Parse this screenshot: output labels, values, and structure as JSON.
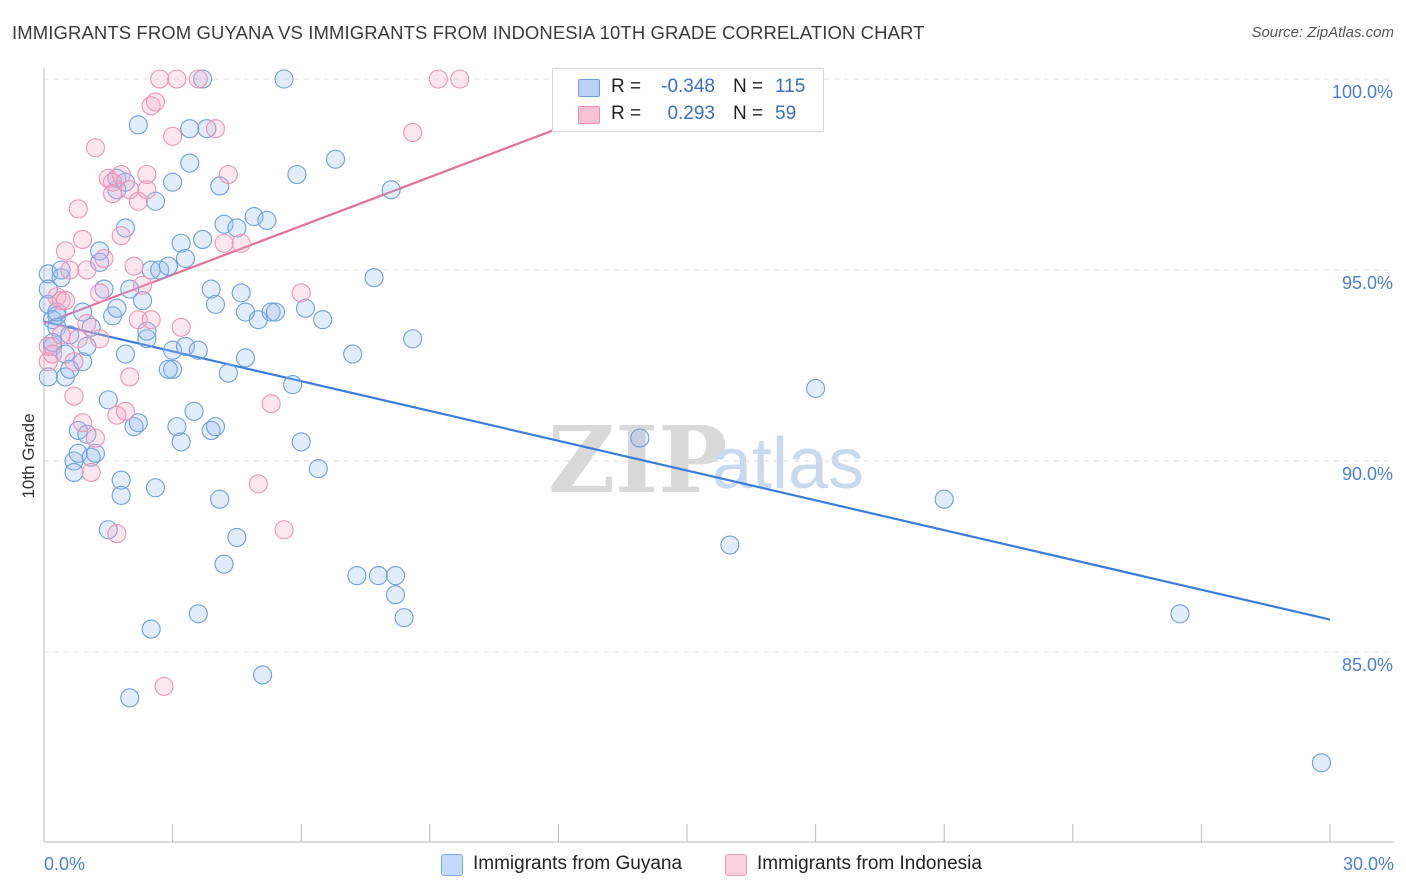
{
  "title": "IMMIGRANTS FROM GUYANA VS IMMIGRANTS FROM INDONESIA 10TH GRADE CORRELATION CHART",
  "source": "Source: ZipAtlas.com",
  "watermark": {
    "zip": "ZIP",
    "atlas": "atlas"
  },
  "stats": {
    "r_label": "R =",
    "n_label": "N =",
    "rows": [
      {
        "r": "-0.348",
        "n": "115",
        "fill": "#b9d2f3",
        "stroke": "#6f9ee0"
      },
      {
        "r": "0.293",
        "n": "59",
        "fill": "#f9c2d3",
        "stroke": "#ee8fae"
      }
    ]
  },
  "legend": [
    {
      "label": "Immigrants from Guyana",
      "fill": "#c4dafa",
      "stroke": "#7ea8e4"
    },
    {
      "label": "Immigrants from Indonesia",
      "fill": "#fbd0de",
      "stroke": "#f09ab8"
    }
  ],
  "chart_data": {
    "type": "scatter",
    "title": "IMMIGRANTS FROM GUYANA VS IMMIGRANTS FROM INDONESIA 10TH GRADE CORRELATION CHART",
    "xlabel": "",
    "ylabel": "10th Grade",
    "xlim": [
      0.0,
      30.0
    ],
    "ylim": [
      80.0,
      100.8
    ],
    "x_tick_labels": [
      {
        "value": 0.0,
        "label": "0.0%"
      },
      {
        "value": 30.0,
        "label": "30.0%"
      }
    ],
    "y_ticks": [
      {
        "value": 85.0,
        "label": "85.0%"
      },
      {
        "value": 90.0,
        "label": "90.0%"
      },
      {
        "value": 95.0,
        "label": "95.0%"
      },
      {
        "value": 100.0,
        "label": "100.0%"
      }
    ],
    "grid": "horizontal dashed",
    "legend_position": "bottom-center",
    "colors": {
      "guyana": "#3b7dd8",
      "indonesia": "#e2709a",
      "tick": "#4a80cc"
    },
    "series": [
      {
        "name": "Immigrants from Guyana",
        "trend": {
          "x": [
            0.0,
            30.0
          ],
          "y": [
            93.65,
            85.85
          ]
        },
        "points": [
          [
            0.1,
            94.9
          ],
          [
            0.1,
            94.5
          ],
          [
            0.1,
            94.1
          ],
          [
            0.2,
            93.7
          ],
          [
            0.2,
            93.0
          ],
          [
            0.3,
            93.8
          ],
          [
            0.3,
            93.5
          ],
          [
            0.4,
            94.8
          ],
          [
            0.4,
            95.0
          ],
          [
            0.5,
            92.8
          ],
          [
            0.5,
            92.2
          ],
          [
            0.6,
            92.4
          ],
          [
            0.6,
            93.3
          ],
          [
            0.7,
            90.0
          ],
          [
            0.7,
            89.7
          ],
          [
            0.8,
            90.2
          ],
          [
            0.8,
            90.8
          ],
          [
            0.9,
            92.6
          ],
          [
            0.9,
            93.9
          ],
          [
            1.0,
            93.0
          ],
          [
            1.0,
            90.7
          ],
          [
            1.1,
            93.5
          ],
          [
            1.1,
            90.1
          ],
          [
            1.2,
            90.2
          ],
          [
            1.3,
            95.2
          ],
          [
            1.3,
            95.5
          ],
          [
            1.4,
            94.5
          ],
          [
            1.5,
            91.6
          ],
          [
            1.5,
            88.2
          ],
          [
            1.6,
            93.8
          ],
          [
            1.7,
            97.1
          ],
          [
            1.7,
            97.4
          ],
          [
            1.8,
            89.5
          ],
          [
            1.8,
            89.1
          ],
          [
            1.9,
            96.1
          ],
          [
            1.9,
            92.8
          ],
          [
            2.0,
            94.5
          ],
          [
            2.1,
            90.9
          ],
          [
            1.9,
            97.3
          ],
          [
            2.2,
            91.0
          ],
          [
            2.2,
            98.8
          ],
          [
            2.3,
            94.2
          ],
          [
            2.4,
            93.2
          ],
          [
            2.4,
            93.4
          ],
          [
            2.5,
            95.0
          ],
          [
            2.5,
            85.6
          ],
          [
            2.6,
            96.8
          ],
          [
            2.6,
            89.3
          ],
          [
            2.7,
            95.0
          ],
          [
            2.9,
            95.1
          ],
          [
            2.0,
            83.8
          ],
          [
            3.0,
            92.4
          ],
          [
            3.0,
            92.9
          ],
          [
            3.0,
            97.3
          ],
          [
            3.1,
            90.9
          ],
          [
            3.2,
            95.7
          ],
          [
            3.2,
            90.5
          ],
          [
            3.3,
            95.3
          ],
          [
            3.3,
            93.0
          ],
          [
            3.4,
            98.7
          ],
          [
            3.4,
            97.8
          ],
          [
            3.5,
            91.3
          ],
          [
            3.6,
            92.9
          ],
          [
            3.6,
            86.0
          ],
          [
            3.7,
            95.8
          ],
          [
            3.7,
            100.0
          ],
          [
            3.8,
            98.7
          ],
          [
            3.9,
            94.5
          ],
          [
            3.9,
            90.8
          ],
          [
            4.0,
            90.9
          ],
          [
            4.0,
            94.1
          ],
          [
            4.1,
            89.0
          ],
          [
            4.1,
            97.2
          ],
          [
            4.2,
            96.2
          ],
          [
            4.2,
            87.3
          ],
          [
            4.3,
            92.3
          ],
          [
            4.5,
            96.1
          ],
          [
            4.5,
            88.0
          ],
          [
            4.6,
            94.4
          ],
          [
            4.7,
            92.7
          ],
          [
            4.7,
            93.9
          ],
          [
            4.9,
            96.4
          ],
          [
            5.0,
            93.7
          ],
          [
            5.1,
            84.4
          ],
          [
            5.2,
            96.3
          ],
          [
            5.3,
            93.9
          ],
          [
            5.4,
            93.9
          ],
          [
            5.6,
            100.0
          ],
          [
            5.8,
            92.0
          ],
          [
            5.9,
            97.5
          ],
          [
            6.0,
            90.5
          ],
          [
            6.1,
            94.0
          ],
          [
            6.4,
            89.8
          ],
          [
            6.5,
            93.7
          ],
          [
            6.8,
            97.9
          ],
          [
            7.2,
            92.8
          ],
          [
            7.3,
            87.0
          ],
          [
            7.7,
            94.8
          ],
          [
            7.8,
            87.0
          ],
          [
            8.1,
            97.1
          ],
          [
            8.2,
            87.0
          ],
          [
            8.2,
            86.5
          ],
          [
            8.4,
            85.9
          ],
          [
            8.6,
            93.2
          ],
          [
            13.9,
            90.6
          ],
          [
            16.0,
            87.8
          ],
          [
            18.0,
            91.9
          ],
          [
            21.0,
            89.0
          ],
          [
            26.5,
            86.0
          ],
          [
            29.8,
            82.1
          ],
          [
            0.1,
            92.2
          ],
          [
            0.2,
            93.1
          ],
          [
            0.3,
            93.9
          ],
          [
            1.7,
            94.0
          ],
          [
            2.9,
            92.4
          ]
        ]
      },
      {
        "name": "Immigrants from Indonesia",
        "trend": {
          "x": [
            0.0,
            14.8
          ],
          "y": [
            93.6,
            99.9
          ]
        },
        "points": [
          [
            0.1,
            93.0
          ],
          [
            0.1,
            92.6
          ],
          [
            0.2,
            92.8
          ],
          [
            0.3,
            94.3
          ],
          [
            0.4,
            94.2
          ],
          [
            0.4,
            93.3
          ],
          [
            0.5,
            95.5
          ],
          [
            0.5,
            94.2
          ],
          [
            0.6,
            95.0
          ],
          [
            0.7,
            92.6
          ],
          [
            0.7,
            91.7
          ],
          [
            0.8,
            96.6
          ],
          [
            0.8,
            93.2
          ],
          [
            0.9,
            95.8
          ],
          [
            1.0,
            93.6
          ],
          [
            1.0,
            95.0
          ],
          [
            1.1,
            89.7
          ],
          [
            1.2,
            90.6
          ],
          [
            1.2,
            98.2
          ],
          [
            1.3,
            94.4
          ],
          [
            1.4,
            95.3
          ],
          [
            1.5,
            97.4
          ],
          [
            1.6,
            97.3
          ],
          [
            1.6,
            97.0
          ],
          [
            1.7,
            91.2
          ],
          [
            1.7,
            88.1
          ],
          [
            1.8,
            97.5
          ],
          [
            1.8,
            95.9
          ],
          [
            1.9,
            91.3
          ],
          [
            2.0,
            92.2
          ],
          [
            2.0,
            97.1
          ],
          [
            2.1,
            95.1
          ],
          [
            2.2,
            96.8
          ],
          [
            2.2,
            93.7
          ],
          [
            2.3,
            94.6
          ],
          [
            2.4,
            97.5
          ],
          [
            2.4,
            97.1
          ],
          [
            2.5,
            99.3
          ],
          [
            2.5,
            93.7
          ],
          [
            2.6,
            99.4
          ],
          [
            2.7,
            100.0
          ],
          [
            2.8,
            84.1
          ],
          [
            3.0,
            98.5
          ],
          [
            3.1,
            100.0
          ],
          [
            3.2,
            93.5
          ],
          [
            3.6,
            100.0
          ],
          [
            4.0,
            98.7
          ],
          [
            4.2,
            95.7
          ],
          [
            4.3,
            97.5
          ],
          [
            4.6,
            95.7
          ],
          [
            5.0,
            89.4
          ],
          [
            5.3,
            91.5
          ],
          [
            5.6,
            88.2
          ],
          [
            6.0,
            94.4
          ],
          [
            8.6,
            98.6
          ],
          [
            9.2,
            100.0
          ],
          [
            9.7,
            100.0
          ],
          [
            0.9,
            91.0
          ],
          [
            1.3,
            93.2
          ]
        ]
      }
    ]
  }
}
